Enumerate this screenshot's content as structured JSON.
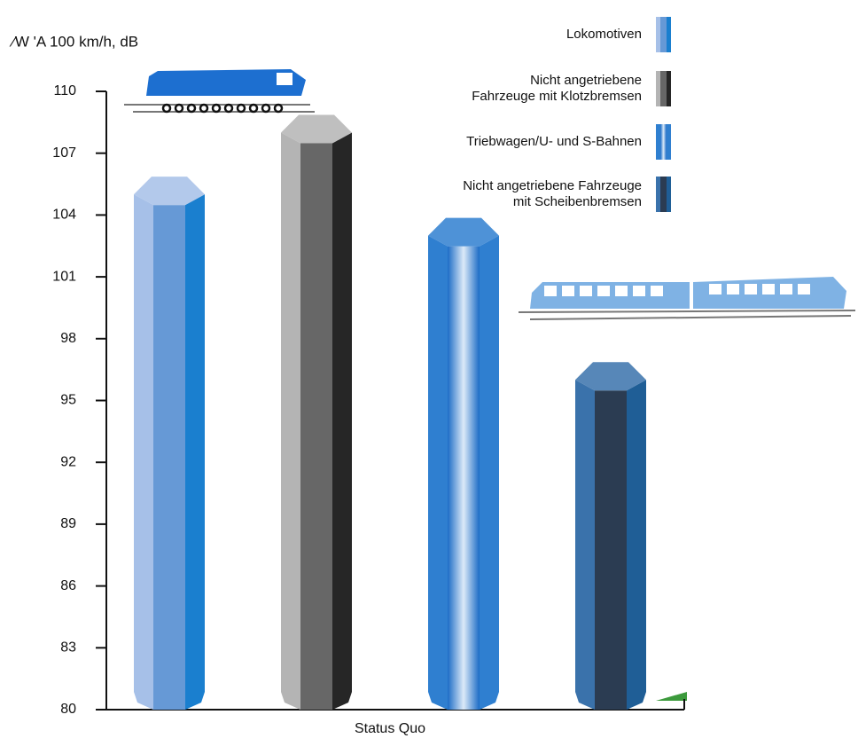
{
  "chart_data": {
    "type": "bar",
    "y_label": "⁄W 'A 100 km/h, dB",
    "categories": [
      "Status Quo"
    ],
    "series": [
      {
        "name": "Lokomotiven",
        "colors": [
          "#a6c0e8",
          "#6699d6",
          "#1a7fcf"
        ],
        "values": [
          105
        ]
      },
      {
        "name": "Nicht angetriebene\nFahrzeuge mit Klotzbremsen",
        "colors": [
          "#b4b4b4",
          "#676767",
          "#262626"
        ],
        "values": [
          108
        ]
      },
      {
        "name": "Triebwagen/U- und S-Bahnen",
        "colors": [
          "#2f7fd0",
          "#f4f8fd",
          "#2f7fd0"
        ],
        "values": [
          103
        ]
      },
      {
        "name": "Nicht angetriebene Fahrzeuge\nmit Scheibenbremsen",
        "colors": [
          "#3a72ab",
          "#2b3c52",
          "#1f5e96"
        ],
        "values": [
          96
        ]
      }
    ],
    "ylim": [
      80,
      110
    ],
    "yticks": [
      80,
      83,
      86,
      89,
      92,
      95,
      98,
      101,
      104,
      107,
      110
    ]
  }
}
